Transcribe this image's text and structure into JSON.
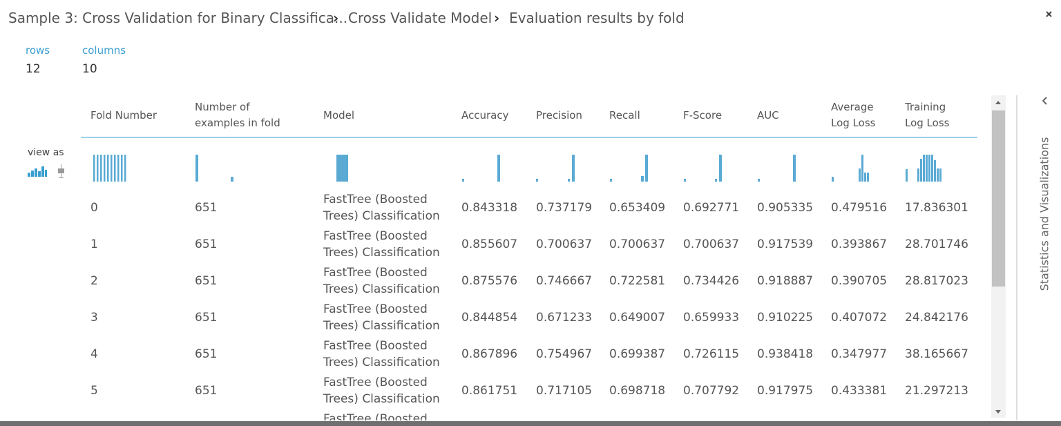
{
  "breadcrumb": {
    "items": [
      "Sample 3: Cross Validation for Binary Classifica...",
      "Cross Validate Model",
      "Evaluation results by fold"
    ]
  },
  "stats": [
    {
      "label": "rows",
      "value": "12"
    },
    {
      "label": "columns",
      "value": "10"
    }
  ],
  "view_as": "view as",
  "table": {
    "headers": [
      "Fold Number",
      "Number of examples in fold",
      "Model",
      "Accuracy",
      "Precision",
      "Recall",
      "F-Score",
      "AUC",
      "Average Log Loss",
      "Training Log Loss"
    ],
    "rows": [
      [
        "0",
        "651",
        "FastTree (Boosted Trees) Classification",
        "0.843318",
        "0.737179",
        "0.653409",
        "0.692771",
        "0.905335",
        "0.479516",
        "17.836301"
      ],
      [
        "1",
        "651",
        "FastTree (Boosted Trees) Classification",
        "0.855607",
        "0.700637",
        "0.700637",
        "0.700637",
        "0.917539",
        "0.393867",
        "28.701746"
      ],
      [
        "2",
        "651",
        "FastTree (Boosted Trees) Classification",
        "0.875576",
        "0.746667",
        "0.722581",
        "0.734426",
        "0.918887",
        "0.390705",
        "28.817023"
      ],
      [
        "3",
        "651",
        "FastTree (Boosted Trees) Classification",
        "0.844854",
        "0.671233",
        "0.649007",
        "0.659933",
        "0.910225",
        "0.407072",
        "24.842176"
      ],
      [
        "4",
        "651",
        "FastTree (Boosted Trees) Classification",
        "0.867896",
        "0.754967",
        "0.699387",
        "0.726115",
        "0.938418",
        "0.347977",
        "38.165667"
      ],
      [
        "5",
        "651",
        "FastTree (Boosted Trees) Classification",
        "0.861751",
        "0.717105",
        "0.698718",
        "0.707792",
        "0.917975",
        "0.433381",
        "21.297213"
      ]
    ],
    "partial_row": {
      "model": "FastTree (Boosted"
    }
  },
  "sidebar": {
    "title": "Statistics and Visualizations"
  }
}
